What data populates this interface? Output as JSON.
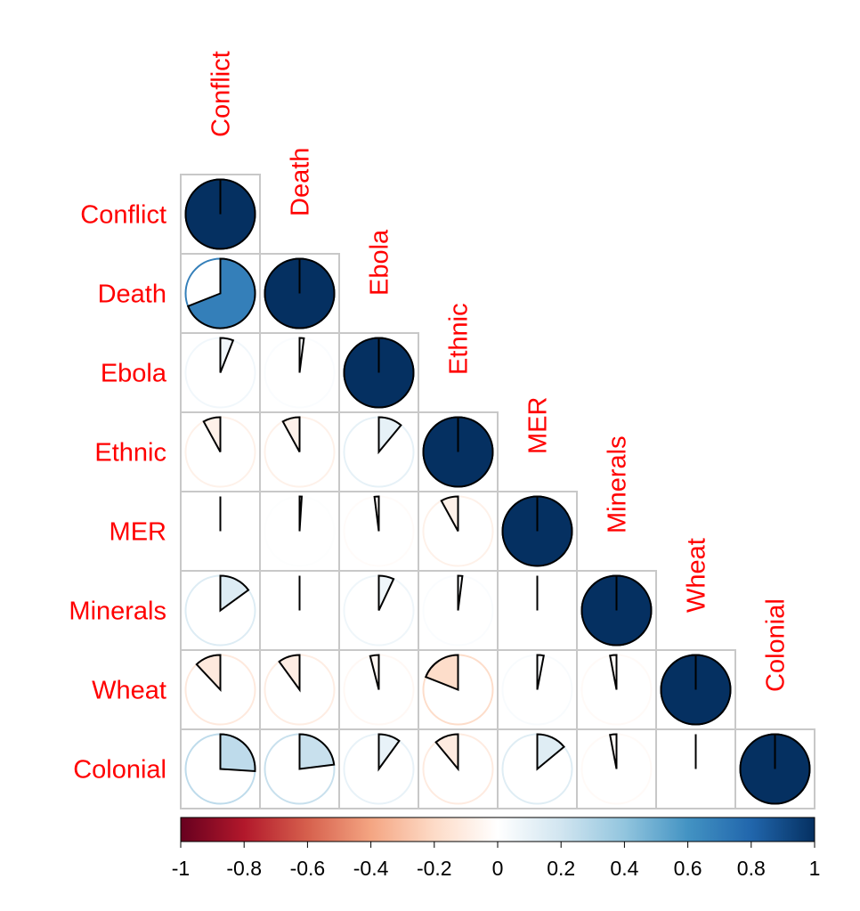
{
  "chart_data": {
    "type": "heatmap",
    "method": "pie",
    "triangle": "lower",
    "variables": [
      "Conflict",
      "Death",
      "Ebola",
      "Ethnic",
      "MER",
      "Minerals",
      "Wheat",
      "Colonial"
    ],
    "matrix": [
      [
        1.0,
        0.69,
        0.06,
        -0.08,
        0.0,
        0.15,
        -0.12,
        0.26
      ],
      [
        0.69,
        1.0,
        0.02,
        -0.08,
        0.01,
        0.0,
        -0.1,
        0.23
      ],
      [
        0.06,
        0.02,
        1.0,
        0.11,
        -0.02,
        0.07,
        -0.04,
        0.1
      ],
      [
        -0.08,
        -0.08,
        0.11,
        1.0,
        -0.08,
        0.02,
        -0.19,
        -0.11
      ],
      [
        0.0,
        0.01,
        -0.02,
        -0.08,
        1.0,
        0.0,
        0.03,
        0.14
      ],
      [
        0.15,
        0.0,
        0.07,
        0.02,
        0.0,
        1.0,
        -0.03,
        -0.03
      ],
      [
        -0.12,
        -0.1,
        -0.04,
        -0.19,
        0.03,
        -0.03,
        1.0,
        0.0
      ],
      [
        0.26,
        0.23,
        0.1,
        -0.11,
        0.14,
        -0.03,
        0.0,
        1.0
      ]
    ],
    "colorbar": {
      "range": [
        -1,
        1
      ],
      "ticks": [
        "-1",
        "-0.8",
        "-0.6",
        "-0.4",
        "-0.2",
        "0",
        "0.2",
        "0.4",
        "0.6",
        "0.8",
        "1"
      ],
      "placement": "bottom"
    },
    "palette": [
      "#67001F",
      "#B2182B",
      "#D6604D",
      "#F4A582",
      "#FDDBC7",
      "#FFFFFF",
      "#D1E5F0",
      "#92C5DE",
      "#4393C3",
      "#2166AC",
      "#053061"
    ],
    "label_color": "#FF0000",
    "grid_color": "#C8C8C8"
  }
}
